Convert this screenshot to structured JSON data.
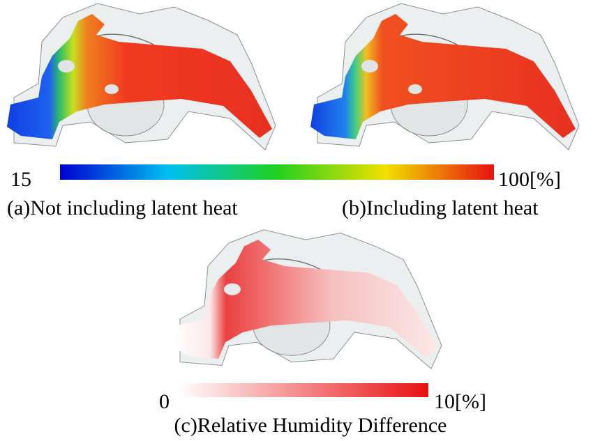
{
  "panels": [
    {
      "caption": "(a)Not including latent heat"
    },
    {
      "caption": "(b)Including latent heat"
    },
    {
      "caption": "(c)Relative Humidity Difference",
      "colorbar": {
        "min_label": "0",
        "max_label": "10[%]"
      }
    }
  ],
  "colorbar": {
    "min_label": "15",
    "max_label": "100[%]"
  }
}
